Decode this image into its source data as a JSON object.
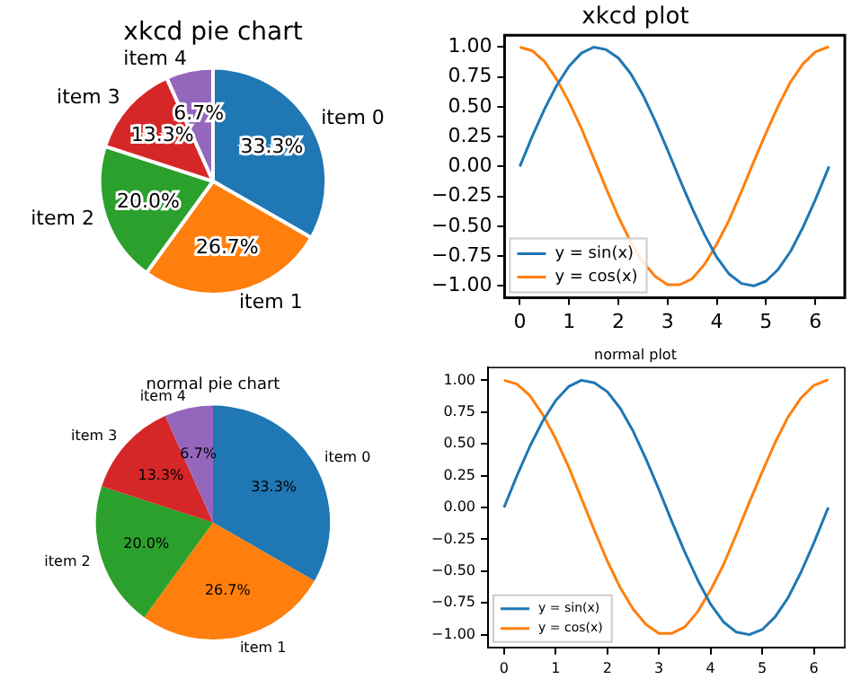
{
  "chart_data": [
    {
      "type": "pie",
      "title": "xkcd pie chart",
      "categories": [
        "item 0",
        "item 1",
        "item 2",
        "item 3",
        "item 4"
      ],
      "values": [
        33.3,
        26.7,
        20.0,
        13.3,
        6.7
      ],
      "colors": [
        "#1f77b4",
        "#ff7f0e",
        "#2ca02c",
        "#d62728",
        "#9467bd"
      ],
      "value_labels": [
        "33.3%",
        "26.7%",
        "20.0%",
        "13.3%",
        "6.7%"
      ],
      "legend": false
    },
    {
      "type": "line",
      "title": "xkcd plot",
      "x": [
        0,
        0.25,
        0.5,
        0.75,
        1,
        1.25,
        1.5,
        1.75,
        2,
        2.25,
        2.5,
        2.75,
        3,
        3.25,
        3.5,
        3.75,
        4,
        4.25,
        4.5,
        4.75,
        5,
        5.25,
        5.5,
        5.75,
        6,
        6.25,
        6.28
      ],
      "xlim": [
        -0.31,
        6.6
      ],
      "ylim": [
        -1.1,
        1.1
      ],
      "xticks": [
        0,
        1,
        2,
        3,
        4,
        5,
        6
      ],
      "yticks": [
        {
          "value": -1,
          "label": "−1.00"
        },
        {
          "value": -0.75,
          "label": "−0.75"
        },
        {
          "value": -0.5,
          "label": "−0.50"
        },
        {
          "value": -0.25,
          "label": "−0.25"
        },
        {
          "value": 0,
          "label": "0.00"
        },
        {
          "value": 0.25,
          "label": "0.25"
        },
        {
          "value": 0.5,
          "label": "0.50"
        },
        {
          "value": 0.75,
          "label": "0.75"
        },
        {
          "value": 1,
          "label": "1.00"
        }
      ],
      "grid": false,
      "legend": "bottom left",
      "marker": "none",
      "line_style": "solid",
      "series": [
        {
          "name": "y = sin(x)",
          "color": "#1f77b4",
          "values": [
            0,
            0.25,
            0.48,
            0.68,
            0.84,
            0.95,
            1.0,
            0.98,
            0.91,
            0.78,
            0.6,
            0.38,
            0.14,
            -0.11,
            -0.35,
            -0.57,
            -0.76,
            -0.9,
            -0.98,
            -1.0,
            -0.96,
            -0.86,
            -0.71,
            -0.51,
            -0.28,
            -0.03,
            0
          ]
        },
        {
          "name": "y = cos(x)",
          "color": "#ff7f0e",
          "values": [
            1,
            0.97,
            0.88,
            0.73,
            0.54,
            0.32,
            0.07,
            -0.18,
            -0.42,
            -0.63,
            -0.8,
            -0.92,
            -0.99,
            -0.99,
            -0.94,
            -0.82,
            -0.65,
            -0.45,
            -0.21,
            0.04,
            0.28,
            0.51,
            0.71,
            0.86,
            0.96,
            1.0,
            1.0
          ]
        }
      ]
    },
    {
      "type": "pie",
      "title": "normal pie chart",
      "categories": [
        "item 0",
        "item 1",
        "item 2",
        "item 3",
        "item 4"
      ],
      "values": [
        33.3,
        26.7,
        20.0,
        13.3,
        6.7
      ],
      "colors": [
        "#1f77b4",
        "#ff7f0e",
        "#2ca02c",
        "#d62728",
        "#9467bd"
      ],
      "value_labels": [
        "33.3%",
        "26.7%",
        "20.0%",
        "13.3%",
        "6.7%"
      ],
      "legend": false
    },
    {
      "type": "line",
      "title": "normal plot",
      "x": [
        0,
        0.25,
        0.5,
        0.75,
        1,
        1.25,
        1.5,
        1.75,
        2,
        2.25,
        2.5,
        2.75,
        3,
        3.25,
        3.5,
        3.75,
        4,
        4.25,
        4.5,
        4.75,
        5,
        5.25,
        5.5,
        5.75,
        6,
        6.25,
        6.28
      ],
      "xlim": [
        -0.31,
        6.6
      ],
      "ylim": [
        -1.1,
        1.1
      ],
      "xticks": [
        0,
        1,
        2,
        3,
        4,
        5,
        6
      ],
      "yticks": [
        {
          "value": -1,
          "label": "−1.00"
        },
        {
          "value": -0.75,
          "label": "−0.75"
        },
        {
          "value": -0.5,
          "label": "−0.50"
        },
        {
          "value": -0.25,
          "label": "−0.25"
        },
        {
          "value": 0,
          "label": "0.00"
        },
        {
          "value": 0.25,
          "label": "0.25"
        },
        {
          "value": 0.5,
          "label": "0.50"
        },
        {
          "value": 0.75,
          "label": "0.75"
        },
        {
          "value": 1,
          "label": "1.00"
        }
      ],
      "grid": false,
      "legend": "bottom left",
      "marker": "none",
      "line_style": "solid",
      "series": [
        {
          "name": "y = sin(x)",
          "color": "#1f77b4",
          "values": [
            0,
            0.25,
            0.48,
            0.68,
            0.84,
            0.95,
            1.0,
            0.98,
            0.91,
            0.78,
            0.6,
            0.38,
            0.14,
            -0.11,
            -0.35,
            -0.57,
            -0.76,
            -0.9,
            -0.98,
            -1.0,
            -0.96,
            -0.86,
            -0.71,
            -0.51,
            -0.28,
            -0.03,
            0
          ]
        },
        {
          "name": "y = cos(x)",
          "color": "#ff7f0e",
          "values": [
            1,
            0.97,
            0.88,
            0.73,
            0.54,
            0.32,
            0.07,
            -0.18,
            -0.42,
            -0.63,
            -0.8,
            -0.92,
            -0.99,
            -0.99,
            -0.94,
            -0.82,
            -0.65,
            -0.45,
            -0.21,
            0.04,
            0.28,
            0.51,
            0.71,
            0.86,
            0.96,
            1.0,
            1.0
          ]
        }
      ]
    }
  ]
}
